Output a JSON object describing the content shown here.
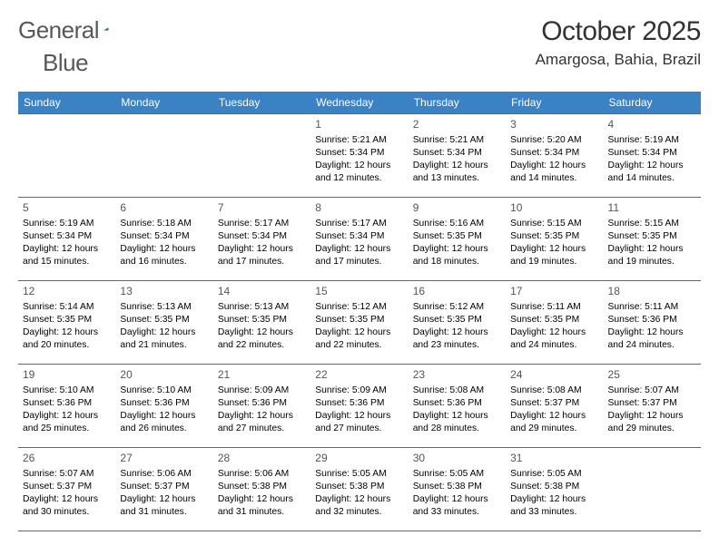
{
  "branding": {
    "part1": "General",
    "part2": "Blue"
  },
  "title": "October 2025",
  "location": "Amargosa, Bahia, Brazil",
  "colors": {
    "header_bg": "#3b82c4",
    "header_text": "#ffffff",
    "border": "#3b6fa0",
    "text": "#000000",
    "logo_text": "#585858",
    "logo_triangle": "#1d5da8",
    "background": "#ffffff",
    "title_text": "#333333",
    "daynum_text": "#555555"
  },
  "typography": {
    "month_fontsize": 30,
    "location_fontsize": 17,
    "logo_fontsize": 26,
    "dayheader_fontsize": 12,
    "daynum_fontsize": 12,
    "cell_fontsize": 10.3
  },
  "day_headers": [
    "Sunday",
    "Monday",
    "Tuesday",
    "Wednesday",
    "Thursday",
    "Friday",
    "Saturday"
  ],
  "weeks": [
    [
      {
        "day": "",
        "sunrise": "",
        "sunset": "",
        "daylight": ""
      },
      {
        "day": "",
        "sunrise": "",
        "sunset": "",
        "daylight": ""
      },
      {
        "day": "",
        "sunrise": "",
        "sunset": "",
        "daylight": ""
      },
      {
        "day": "1",
        "sunrise": "Sunrise: 5:21 AM",
        "sunset": "Sunset: 5:34 PM",
        "daylight": "Daylight: 12 hours and 12 minutes."
      },
      {
        "day": "2",
        "sunrise": "Sunrise: 5:21 AM",
        "sunset": "Sunset: 5:34 PM",
        "daylight": "Daylight: 12 hours and 13 minutes."
      },
      {
        "day": "3",
        "sunrise": "Sunrise: 5:20 AM",
        "sunset": "Sunset: 5:34 PM",
        "daylight": "Daylight: 12 hours and 14 minutes."
      },
      {
        "day": "4",
        "sunrise": "Sunrise: 5:19 AM",
        "sunset": "Sunset: 5:34 PM",
        "daylight": "Daylight: 12 hours and 14 minutes."
      }
    ],
    [
      {
        "day": "5",
        "sunrise": "Sunrise: 5:19 AM",
        "sunset": "Sunset: 5:34 PM",
        "daylight": "Daylight: 12 hours and 15 minutes."
      },
      {
        "day": "6",
        "sunrise": "Sunrise: 5:18 AM",
        "sunset": "Sunset: 5:34 PM",
        "daylight": "Daylight: 12 hours and 16 minutes."
      },
      {
        "day": "7",
        "sunrise": "Sunrise: 5:17 AM",
        "sunset": "Sunset: 5:34 PM",
        "daylight": "Daylight: 12 hours and 17 minutes."
      },
      {
        "day": "8",
        "sunrise": "Sunrise: 5:17 AM",
        "sunset": "Sunset: 5:34 PM",
        "daylight": "Daylight: 12 hours and 17 minutes."
      },
      {
        "day": "9",
        "sunrise": "Sunrise: 5:16 AM",
        "sunset": "Sunset: 5:35 PM",
        "daylight": "Daylight: 12 hours and 18 minutes."
      },
      {
        "day": "10",
        "sunrise": "Sunrise: 5:15 AM",
        "sunset": "Sunset: 5:35 PM",
        "daylight": "Daylight: 12 hours and 19 minutes."
      },
      {
        "day": "11",
        "sunrise": "Sunrise: 5:15 AM",
        "sunset": "Sunset: 5:35 PM",
        "daylight": "Daylight: 12 hours and 19 minutes."
      }
    ],
    [
      {
        "day": "12",
        "sunrise": "Sunrise: 5:14 AM",
        "sunset": "Sunset: 5:35 PM",
        "daylight": "Daylight: 12 hours and 20 minutes."
      },
      {
        "day": "13",
        "sunrise": "Sunrise: 5:13 AM",
        "sunset": "Sunset: 5:35 PM",
        "daylight": "Daylight: 12 hours and 21 minutes."
      },
      {
        "day": "14",
        "sunrise": "Sunrise: 5:13 AM",
        "sunset": "Sunset: 5:35 PM",
        "daylight": "Daylight: 12 hours and 22 minutes."
      },
      {
        "day": "15",
        "sunrise": "Sunrise: 5:12 AM",
        "sunset": "Sunset: 5:35 PM",
        "daylight": "Daylight: 12 hours and 22 minutes."
      },
      {
        "day": "16",
        "sunrise": "Sunrise: 5:12 AM",
        "sunset": "Sunset: 5:35 PM",
        "daylight": "Daylight: 12 hours and 23 minutes."
      },
      {
        "day": "17",
        "sunrise": "Sunrise: 5:11 AM",
        "sunset": "Sunset: 5:35 PM",
        "daylight": "Daylight: 12 hours and 24 minutes."
      },
      {
        "day": "18",
        "sunrise": "Sunrise: 5:11 AM",
        "sunset": "Sunset: 5:36 PM",
        "daylight": "Daylight: 12 hours and 24 minutes."
      }
    ],
    [
      {
        "day": "19",
        "sunrise": "Sunrise: 5:10 AM",
        "sunset": "Sunset: 5:36 PM",
        "daylight": "Daylight: 12 hours and 25 minutes."
      },
      {
        "day": "20",
        "sunrise": "Sunrise: 5:10 AM",
        "sunset": "Sunset: 5:36 PM",
        "daylight": "Daylight: 12 hours and 26 minutes."
      },
      {
        "day": "21",
        "sunrise": "Sunrise: 5:09 AM",
        "sunset": "Sunset: 5:36 PM",
        "daylight": "Daylight: 12 hours and 27 minutes."
      },
      {
        "day": "22",
        "sunrise": "Sunrise: 5:09 AM",
        "sunset": "Sunset: 5:36 PM",
        "daylight": "Daylight: 12 hours and 27 minutes."
      },
      {
        "day": "23",
        "sunrise": "Sunrise: 5:08 AM",
        "sunset": "Sunset: 5:36 PM",
        "daylight": "Daylight: 12 hours and 28 minutes."
      },
      {
        "day": "24",
        "sunrise": "Sunrise: 5:08 AM",
        "sunset": "Sunset: 5:37 PM",
        "daylight": "Daylight: 12 hours and 29 minutes."
      },
      {
        "day": "25",
        "sunrise": "Sunrise: 5:07 AM",
        "sunset": "Sunset: 5:37 PM",
        "daylight": "Daylight: 12 hours and 29 minutes."
      }
    ],
    [
      {
        "day": "26",
        "sunrise": "Sunrise: 5:07 AM",
        "sunset": "Sunset: 5:37 PM",
        "daylight": "Daylight: 12 hours and 30 minutes."
      },
      {
        "day": "27",
        "sunrise": "Sunrise: 5:06 AM",
        "sunset": "Sunset: 5:37 PM",
        "daylight": "Daylight: 12 hours and 31 minutes."
      },
      {
        "day": "28",
        "sunrise": "Sunrise: 5:06 AM",
        "sunset": "Sunset: 5:38 PM",
        "daylight": "Daylight: 12 hours and 31 minutes."
      },
      {
        "day": "29",
        "sunrise": "Sunrise: 5:05 AM",
        "sunset": "Sunset: 5:38 PM",
        "daylight": "Daylight: 12 hours and 32 minutes."
      },
      {
        "day": "30",
        "sunrise": "Sunrise: 5:05 AM",
        "sunset": "Sunset: 5:38 PM",
        "daylight": "Daylight: 12 hours and 33 minutes."
      },
      {
        "day": "31",
        "sunrise": "Sunrise: 5:05 AM",
        "sunset": "Sunset: 5:38 PM",
        "daylight": "Daylight: 12 hours and 33 minutes."
      },
      {
        "day": "",
        "sunrise": "",
        "sunset": "",
        "daylight": ""
      }
    ]
  ]
}
